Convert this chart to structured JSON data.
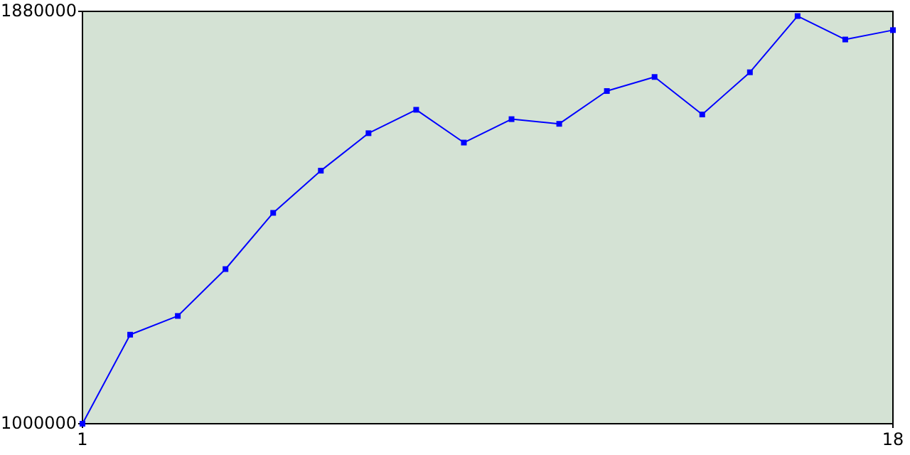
{
  "chart_data": {
    "type": "line",
    "xlim": [
      1,
      18
    ],
    "xticks": [
      1,
      18
    ],
    "ylim": [
      1000000,
      1880000
    ],
    "yticks": [
      1000000,
      1880000
    ],
    "x": [
      1,
      2,
      3,
      4,
      5,
      6,
      7,
      8,
      9,
      10,
      11,
      12,
      13,
      14,
      15,
      16,
      17,
      18
    ],
    "marker": "square",
    "grid": false,
    "series": [
      {
        "color": "#0000ff",
        "values": [
          1000000,
          1190000,
          1230000,
          1330000,
          1450000,
          1540000,
          1620000,
          1670000,
          1600000,
          1650000,
          1640000,
          1710000,
          1740000,
          1660000,
          1750000,
          1870000,
          1820000,
          1840000
        ]
      }
    ]
  }
}
